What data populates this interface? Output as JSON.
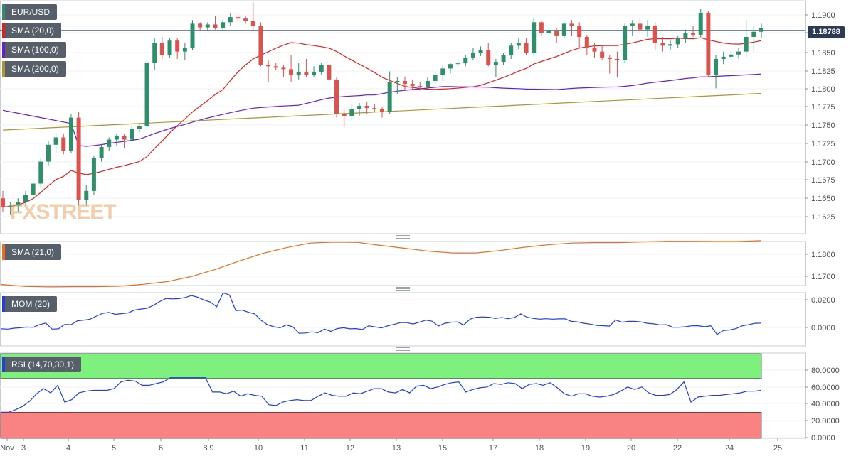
{
  "chart_data": [
    {
      "type": "candlestick",
      "symbol": "EUR/USD",
      "current_price": "1.18788",
      "y_ticks": [
        "1.1900",
        "1.1875",
        "1.1850",
        "1.1825",
        "1.1800",
        "1.1775",
        "1.1750",
        "1.1725",
        "1.1700",
        "1.1675",
        "1.1650",
        "1.1625"
      ],
      "ylim": [
        1.1603,
        1.1917
      ],
      "x_ticks": [
        "Nov",
        "3",
        "4",
        "5",
        "6",
        "8 9",
        "10",
        "11",
        "12",
        "13",
        "15",
        "17",
        "18",
        "19",
        "20",
        "22",
        "24",
        "25"
      ],
      "legend": [
        {
          "name": "SMA (20,0)",
          "color": "#e02020"
        },
        {
          "name": "SMA (100,0)",
          "color": "#6a1fc9"
        },
        {
          "name": "SMA (200,0)",
          "color": "#a89a2a"
        }
      ],
      "candles": [
        [
          1.165,
          1.166,
          1.1631,
          1.1638
        ],
        [
          1.1638,
          1.1645,
          1.1628,
          1.164
        ],
        [
          1.164,
          1.165,
          1.1632,
          1.1645
        ],
        [
          1.1645,
          1.166,
          1.164,
          1.1655
        ],
        [
          1.1655,
          1.1675,
          1.165,
          1.167
        ],
        [
          1.167,
          1.1705,
          1.1665,
          1.17
        ],
        [
          1.17,
          1.1728,
          1.1695,
          1.1723
        ],
        [
          1.1723,
          1.1738,
          1.1712,
          1.1733
        ],
        [
          1.1733,
          1.1738,
          1.171,
          1.1715
        ],
        [
          1.1715,
          1.1765,
          1.1712,
          1.176
        ],
        [
          1.176,
          1.1768,
          1.164,
          1.1648
        ],
        [
          1.1648,
          1.1668,
          1.164,
          1.166
        ],
        [
          1.166,
          1.1708,
          1.1655,
          1.1705
        ],
        [
          1.1705,
          1.1723,
          1.17,
          1.172
        ],
        [
          1.172,
          1.1733,
          1.1715,
          1.173
        ],
        [
          1.173,
          1.1738,
          1.1722,
          1.1735
        ],
        [
          1.1735,
          1.1738,
          1.1718,
          1.173
        ],
        [
          1.173,
          1.1748,
          1.1728,
          1.1745
        ],
        [
          1.1745,
          1.1752,
          1.174,
          1.1748
        ],
        [
          1.1748,
          1.1838,
          1.1745,
          1.1835
        ],
        [
          1.1835,
          1.1868,
          1.1825,
          1.1862
        ],
        [
          1.1862,
          1.187,
          1.184,
          1.1845
        ],
        [
          1.1845,
          1.1868,
          1.1842,
          1.1865
        ],
        [
          1.1865,
          1.1868,
          1.184,
          1.185
        ],
        [
          1.185,
          1.1862,
          1.1838,
          1.1855
        ],
        [
          1.1855,
          1.1893,
          1.1852,
          1.1888
        ],
        [
          1.1888,
          1.189,
          1.1878,
          1.1883
        ],
        [
          1.1883,
          1.189,
          1.1878,
          1.1887
        ],
        [
          1.1887,
          1.1898,
          1.188,
          1.1882
        ],
        [
          1.1882,
          1.1893,
          1.1878,
          1.189
        ],
        [
          1.189,
          1.1902,
          1.1885,
          1.1897
        ],
        [
          1.1897,
          1.1902,
          1.189,
          1.1895
        ],
        [
          1.1895,
          1.1898,
          1.1888,
          1.1892
        ],
        [
          1.1892,
          1.1917,
          1.188,
          1.1885
        ],
        [
          1.1885,
          1.189,
          1.183,
          1.1832
        ],
        [
          1.1832,
          1.1838,
          1.1808,
          1.183
        ],
        [
          1.183,
          1.1835,
          1.1825,
          1.1828
        ],
        [
          1.1828,
          1.1832,
          1.1815,
          1.1826
        ],
        [
          1.1826,
          1.1845,
          1.1808,
          1.1818
        ],
        [
          1.1818,
          1.1835,
          1.1812,
          1.1822
        ],
        [
          1.1822,
          1.184,
          1.1815,
          1.1818
        ],
        [
          1.1818,
          1.183,
          1.1815,
          1.1822
        ],
        [
          1.1822,
          1.1835,
          1.1818,
          1.1832
        ],
        [
          1.1832,
          1.1832,
          1.181,
          1.1812
        ],
        [
          1.1812,
          1.1815,
          1.176,
          1.1765
        ],
        [
          1.1765,
          1.1772,
          1.1747,
          1.1762
        ],
        [
          1.1762,
          1.1778,
          1.1757,
          1.1772
        ],
        [
          1.1772,
          1.178,
          1.1762,
          1.1776
        ],
        [
          1.1776,
          1.1782,
          1.1765,
          1.1773
        ],
        [
          1.1773,
          1.1778,
          1.1768,
          1.1772
        ],
        [
          1.1772,
          1.1775,
          1.176,
          1.1768
        ],
        [
          1.1768,
          1.1823,
          1.1765,
          1.1808
        ],
        [
          1.1808,
          1.1815,
          1.1792,
          1.181
        ],
        [
          1.181,
          1.1816,
          1.1798,
          1.1806
        ],
        [
          1.1806,
          1.1812,
          1.1798,
          1.1803
        ],
        [
          1.1803,
          1.1808,
          1.1797,
          1.1802
        ],
        [
          1.1802,
          1.1815,
          1.18,
          1.181
        ],
        [
          1.181,
          1.1823,
          1.1805,
          1.1818
        ],
        [
          1.1818,
          1.1832,
          1.181,
          1.1827
        ],
        [
          1.1827,
          1.1835,
          1.182,
          1.1833
        ],
        [
          1.1833,
          1.184,
          1.1828,
          1.1834
        ],
        [
          1.1834,
          1.1845,
          1.183,
          1.1842
        ],
        [
          1.1842,
          1.1855,
          1.1838,
          1.1848
        ],
        [
          1.1848,
          1.1857,
          1.1844,
          1.1852
        ],
        [
          1.1852,
          1.1862,
          1.183,
          1.1832
        ],
        [
          1.1832,
          1.184,
          1.1815,
          1.1836
        ],
        [
          1.1836,
          1.1848,
          1.1832,
          1.1845
        ],
        [
          1.1845,
          1.1862,
          1.184,
          1.1858
        ],
        [
          1.1858,
          1.1868,
          1.1853,
          1.1862
        ],
        [
          1.1862,
          1.1868,
          1.1845,
          1.1848
        ],
        [
          1.1848,
          1.1895,
          1.1845,
          1.189
        ],
        [
          1.189,
          1.1892,
          1.1872,
          1.1875
        ],
        [
          1.1875,
          1.1885,
          1.1865,
          1.1878
        ],
        [
          1.1878,
          1.1882,
          1.1862,
          1.1872
        ],
        [
          1.1872,
          1.189,
          1.1868,
          1.1888
        ],
        [
          1.1888,
          1.1893,
          1.1872,
          1.1885
        ],
        [
          1.1885,
          1.189,
          1.1855,
          1.187
        ],
        [
          1.187,
          1.1873,
          1.1845,
          1.1855
        ],
        [
          1.1855,
          1.1862,
          1.1842,
          1.185
        ],
        [
          1.185,
          1.1858,
          1.1838,
          1.1842
        ],
        [
          1.1842,
          1.1845,
          1.182,
          1.184
        ],
        [
          1.184,
          1.185,
          1.1815,
          1.1838
        ],
        [
          1.1838,
          1.1888,
          1.1835,
          1.1885
        ],
        [
          1.1885,
          1.1893,
          1.1872,
          1.1888
        ],
        [
          1.1888,
          1.1895,
          1.1875,
          1.188
        ],
        [
          1.188,
          1.1893,
          1.187,
          1.1885
        ],
        [
          1.1885,
          1.189,
          1.1852,
          1.1862
        ],
        [
          1.1862,
          1.187,
          1.185,
          1.1858
        ],
        [
          1.1858,
          1.1865,
          1.1852,
          1.186
        ],
        [
          1.186,
          1.1872,
          1.1855,
          1.1868
        ],
        [
          1.1868,
          1.188,
          1.1862,
          1.1875
        ],
        [
          1.1875,
          1.1885,
          1.187,
          1.1873
        ],
        [
          1.1873,
          1.1908,
          1.187,
          1.1903
        ],
        [
          1.1903,
          1.1905,
          1.1815,
          1.1818
        ],
        [
          1.1818,
          1.1845,
          1.18,
          1.184
        ],
        [
          1.184,
          1.185,
          1.1833,
          1.1843
        ],
        [
          1.1843,
          1.185,
          1.1838,
          1.1846
        ],
        [
          1.1846,
          1.1855,
          1.184,
          1.185
        ],
        [
          1.185,
          1.1893,
          1.1843,
          1.187
        ],
        [
          1.187,
          1.1885,
          1.185,
          1.1877
        ],
        [
          1.1877,
          1.1888,
          1.1868,
          1.1882
        ]
      ]
    },
    {
      "type": "line",
      "legend": "SMA (21,0)",
      "color": "#ec6c18",
      "y_ticks": [
        "1.1800",
        "1.1700"
      ],
      "ylim": [
        1.164,
        1.1885
      ],
      "values": [
        1.1663,
        1.1654,
        1.1652,
        1.1653,
        1.1653,
        1.1655,
        1.1664,
        1.1676,
        1.1699,
        1.1731,
        1.1769,
        1.1804,
        1.183,
        1.1851,
        1.1855,
        1.1854,
        1.184,
        1.1827,
        1.1814,
        1.1806,
        1.1806,
        1.1817,
        1.1832,
        1.1843,
        1.1851,
        1.1853,
        1.1853,
        1.1856,
        1.1859,
        1.1859,
        1.1858,
        1.1858,
        1.1862
      ]
    },
    {
      "type": "line",
      "legend": "MOM (20)",
      "color": "#1f3fe0",
      "y_ticks": [
        "0.0200",
        "0.0000"
      ],
      "ylim": [
        -0.0065,
        0.0255
      ],
      "values": [
        -0.001,
        -0.0012,
        -0.0005,
        -0.0002,
        0.0003,
        0.0001,
        0.002,
        0.0032,
        -0.0012,
        -0.001,
        0.0022,
        0.002,
        0.0048,
        0.0053,
        0.006,
        0.0082,
        0.0102,
        0.0108,
        0.0095,
        0.01,
        0.0105,
        0.0125,
        0.0133,
        0.0138,
        0.016,
        0.0187,
        0.021,
        0.0206,
        0.0208,
        0.0216,
        0.023,
        0.0218,
        0.0198,
        0.0183,
        0.015,
        0.025,
        0.0235,
        0.0122,
        0.0125,
        0.011,
        0.0098,
        0.0052,
        0.002,
        0.0005,
        -0.0002,
        0.0018,
        0.0005,
        -0.0042,
        -0.004,
        -0.0032,
        -0.0038,
        -0.0012,
        -0.0028,
        -0.0008,
        -0.0002,
        -0.001,
        -0.0008,
        -0.0015,
        0.0012,
        0.0004,
        -0.0003,
        0.0012,
        0.0022,
        0.0035,
        0.0035,
        0.0025,
        0.0038,
        0.0053,
        0.0045,
        0.001,
        0.003,
        0.0038,
        0.004,
        0.0018,
        0.006,
        0.0074,
        0.0076,
        0.0074,
        0.0065,
        0.0072,
        0.0063,
        0.0072,
        0.0098,
        0.0074,
        0.0065,
        0.006,
        0.0063,
        0.006,
        0.0062,
        0.0062,
        0.0044,
        0.004,
        0.003,
        0.0024,
        0.0015,
        0.0013,
        0.001,
        0.0054,
        0.0038,
        0.0044,
        0.0044,
        0.004,
        0.003,
        0.0026,
        0.0018,
        0.002,
        0.0002,
        0.0002,
        0.0005,
        0.0012,
        0.0013,
        0.0005,
        0.0012,
        -0.005,
        -0.0022,
        -0.0018,
        -0.0008,
        0.0012,
        0.002,
        0.003,
        0.0032
      ]
    },
    {
      "type": "line",
      "legend": "RSI (14,70,30,1)",
      "color": "#1f3fe0",
      "y_ticks": [
        "80.0000",
        "60.0000",
        "40.0000",
        "20.0000",
        "0.0000"
      ],
      "ylim": [
        0,
        91
      ],
      "bands": {
        "overbought": 70,
        "oversold": 30,
        "overbought_color": "#7ef07e",
        "oversold_color": "#f98282"
      },
      "values": [
        30,
        30,
        33,
        37,
        43,
        52,
        58,
        53,
        62,
        42,
        45,
        53,
        55,
        56,
        56,
        56,
        58,
        66,
        68,
        67,
        62,
        62,
        64,
        66,
        71,
        71,
        71,
        71,
        71,
        71,
        54,
        54,
        52,
        55,
        49,
        52,
        50,
        49,
        39,
        38,
        42,
        44,
        45,
        44,
        44,
        49,
        53,
        50,
        49,
        49,
        53,
        52,
        55,
        58,
        58,
        54,
        53,
        57,
        53,
        61,
        62,
        58,
        60,
        63,
        65,
        66,
        54,
        57,
        59,
        60,
        64,
        63,
        65,
        64,
        58,
        63,
        64,
        62,
        65,
        59,
        52,
        49,
        52,
        52,
        49,
        48,
        49,
        51,
        55,
        60,
        57,
        60,
        53,
        50,
        50,
        51,
        57,
        66,
        42,
        48,
        49,
        50,
        50,
        51,
        52,
        53,
        55,
        55,
        56
      ]
    }
  ]
}
